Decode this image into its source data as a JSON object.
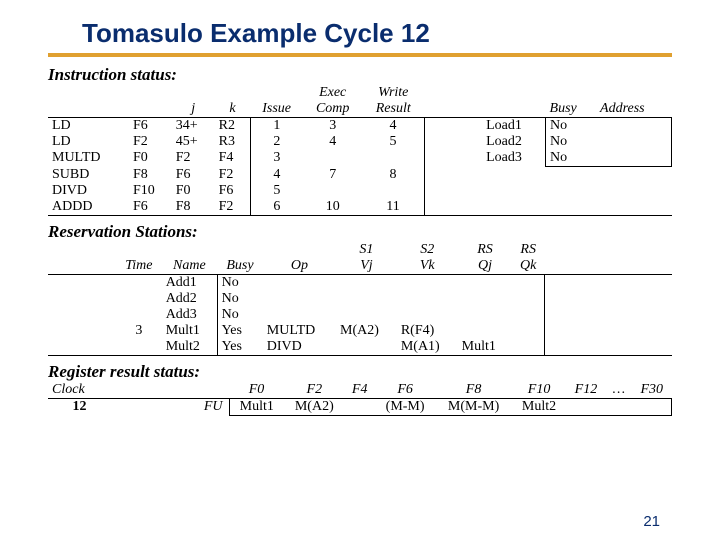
{
  "title": "Tomasulo Example Cycle 12",
  "sections": {
    "instr": "Instruction status:",
    "rs": "Reservation Stations:",
    "reg": "Register result status:"
  },
  "instrHdr": {
    "j": "j",
    "k": "k",
    "issue": "Issue",
    "exec1": "Exec",
    "exec2": "Comp",
    "write1": "Write",
    "write2": "Result",
    "busy": "Busy",
    "addr": "Address"
  },
  "instr": [
    {
      "op": "LD",
      "fi": "F6",
      "j": "34+",
      "k": "R2",
      "is": "1",
      "ec": "3",
      "wr": "4",
      "ld": "Load1",
      "b": "No",
      "a": ""
    },
    {
      "op": "LD",
      "fi": "F2",
      "j": "45+",
      "k": "R3",
      "is": "2",
      "ec": "4",
      "wr": "5",
      "ld": "Load2",
      "b": "No",
      "a": ""
    },
    {
      "op": "MULTD",
      "fi": "F0",
      "j": "F2",
      "k": "F4",
      "is": "3",
      "ec": "",
      "wr": "",
      "ld": "Load3",
      "b": "No",
      "a": ""
    },
    {
      "op": "SUBD",
      "fi": "F8",
      "j": "F6",
      "k": "F2",
      "is": "4",
      "ec": "7",
      "wr": "8",
      "ld": "",
      "b": "",
      "a": ""
    },
    {
      "op": "DIVD",
      "fi": "F10",
      "j": "F0",
      "k": "F6",
      "is": "5",
      "ec": "",
      "wr": "",
      "ld": "",
      "b": "",
      "a": ""
    },
    {
      "op": "ADDD",
      "fi": "F6",
      "j": "F8",
      "k": "F2",
      "is": "6",
      "ec": "10",
      "wr": "11",
      "ld": "",
      "b": "",
      "a": ""
    }
  ],
  "rsHdr": {
    "time": "Time",
    "name": "Name",
    "busy": "Busy",
    "op": "Op",
    "s1": "S1",
    "vj": "Vj",
    "s2": "S2",
    "vk": "Vk",
    "rs1": "RS",
    "qj": "Qj",
    "rs2": "RS",
    "qk": "Qk"
  },
  "rs": [
    {
      "t": "",
      "n": "Add1",
      "b": "No",
      "op": "",
      "vj": "",
      "vk": "",
      "qj": "",
      "qk": ""
    },
    {
      "t": "",
      "n": "Add2",
      "b": "No",
      "op": "",
      "vj": "",
      "vk": "",
      "qj": "",
      "qk": ""
    },
    {
      "t": "",
      "n": "Add3",
      "b": "No",
      "op": "",
      "vj": "",
      "vk": "",
      "qj": "",
      "qk": ""
    },
    {
      "t": "3",
      "n": "Mult1",
      "b": "Yes",
      "op": "MULTD",
      "vj": "M(A2)",
      "vk": "R(F4)",
      "qj": "",
      "qk": ""
    },
    {
      "t": "",
      "n": "Mult2",
      "b": "Yes",
      "op": "DIVD",
      "vj": "",
      "vk": "M(A1)",
      "qj": "Mult1",
      "qk": ""
    }
  ],
  "reg": {
    "clockLbl": "Clock",
    "clockVal": "12",
    "fuLbl": "FU",
    "cols": [
      "F0",
      "F2",
      "F4",
      "F6",
      "F8",
      "F10",
      "F12",
      "…",
      "F30"
    ],
    "vals": [
      "Mult1",
      "M(A2)",
      "",
      "(M-M)",
      "M(M-M)",
      "Mult2",
      "",
      "",
      ""
    ]
  },
  "pageNum": "21",
  "colors": {
    "title": "#0a2d6e",
    "underline": "#e0a030"
  }
}
